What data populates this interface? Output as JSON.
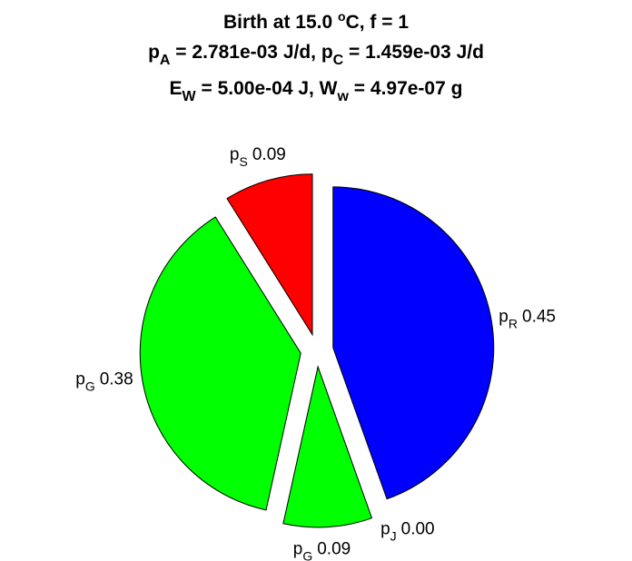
{
  "chart_data": {
    "type": "pie",
    "title_lines": [
      {
        "segments": [
          [
            "Birth at 15.0 ",
            ""
          ],
          [
            "o",
            "sup"
          ],
          [
            "C, f = 1",
            ""
          ]
        ]
      },
      {
        "segments": [
          [
            "p",
            ""
          ],
          [
            "A",
            "sub"
          ],
          [
            " = 2.781e-03 J/d, p",
            ""
          ],
          [
            "C",
            "sub"
          ],
          [
            " = 1.459e-03 J/d",
            ""
          ]
        ]
      },
      {
        "segments": [
          [
            "E",
            ""
          ],
          [
            "W",
            "sub"
          ],
          [
            " = 5.00e-04 J, W",
            ""
          ],
          [
            "w",
            "sub"
          ],
          [
            " = 4.97e-07 g",
            ""
          ]
        ]
      }
    ],
    "slices": [
      {
        "symbol": "p",
        "subscript": "R",
        "value": 0.45,
        "value_label": "0.45",
        "color": "#0000ff"
      },
      {
        "symbol": "p",
        "subscript": "J",
        "value": 0.0,
        "value_label": "0.00",
        "color": "#ffffff"
      },
      {
        "symbol": "p",
        "subscript": "G",
        "value": 0.09,
        "value_label": "0.09",
        "color": "#00ff00"
      },
      {
        "symbol": "p",
        "subscript": "G",
        "value": 0.38,
        "value_label": "0.38",
        "color": "#00ff00"
      },
      {
        "symbol": "p",
        "subscript": "S",
        "value": 0.09,
        "value_label": "0.09",
        "color": "#ff0000"
      }
    ]
  }
}
